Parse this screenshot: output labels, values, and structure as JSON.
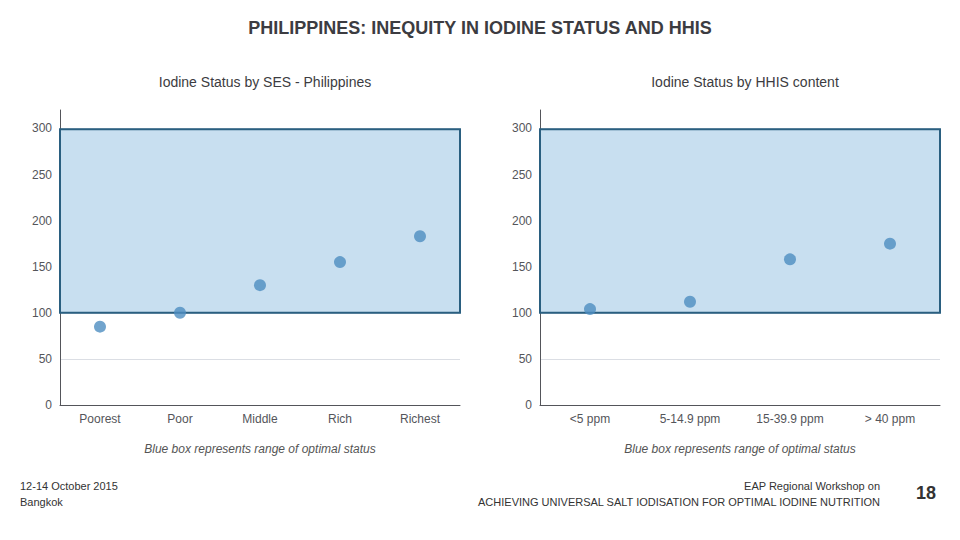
{
  "title": "PHILIPPINES: INEQUITY IN IODINE STATUS AND HHIS",
  "annotations": [
    "12-14 October 2015\nBangkok",
    "EAP Regional Workshop on\nACHIEVING UNIVERSAL SALT IODISATION FOR OPTIMAL IODINE NUTRITION",
    "18"
  ],
  "chart_data": [
    {
      "type": "scatter",
      "title": "Iodine Status by SES - Philippines",
      "categories": [
        "Poorest",
        "Poor",
        "Middle",
        "Rich",
        "Richest"
      ],
      "values": [
        85,
        100,
        130,
        155,
        183
      ],
      "color": "#4d8dc0",
      "optimal_range": [
        100,
        299
      ],
      "optimal_color": "#c8dff0",
      "optimal_edge_color": "#2a5f80",
      "ylim": [
        0,
        320
      ],
      "yticks": [
        0,
        50,
        100,
        150,
        200,
        250,
        300
      ],
      "grid": true,
      "annotations": [
        "Blue box represents range of optimal status"
      ]
    },
    {
      "type": "scatter",
      "title": "Iodine Status by HHIS content",
      "categories": [
        "<5 ppm",
        "5-14.9 ppm",
        "15-39.9 ppm",
        "> 40 ppm"
      ],
      "values": [
        104,
        112,
        158,
        175
      ],
      "color": "#4d8dc0",
      "optimal_range": [
        100,
        299
      ],
      "optimal_color": "#c8dff0",
      "optimal_edge_color": "#2a5f80",
      "ylim": [
        0,
        320
      ],
      "yticks": [
        0,
        50,
        100,
        150,
        200,
        250,
        300
      ],
      "grid": true,
      "annotations": [
        "Blue box represents range of optimal status"
      ]
    }
  ]
}
